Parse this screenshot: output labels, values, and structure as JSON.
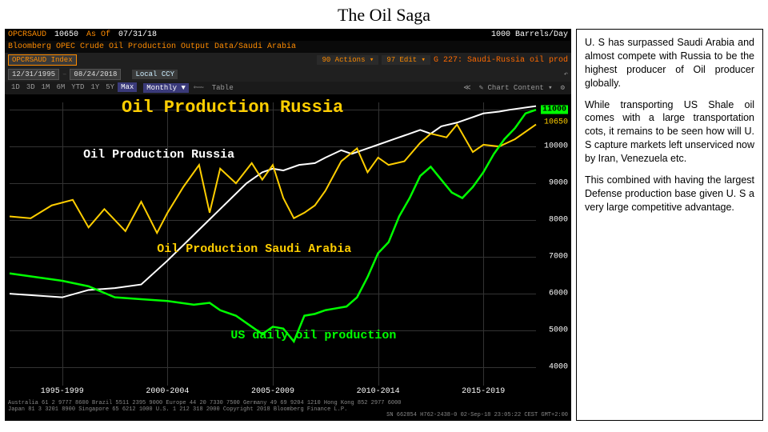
{
  "page": {
    "title": "The Oil Saga"
  },
  "terminal": {
    "header": {
      "ticker": "OPCRSAUD",
      "value": "10650",
      "asof_label": "As Of",
      "asof_date": "07/31/18",
      "unit": "1000 Barrels/Day",
      "subtitle": "Bloomberg OPEC Crude Oil Production Output Data/Saudi Arabia"
    },
    "toolbar": {
      "index_label": "OPCRSAUD Index",
      "actions_count": "90",
      "actions_label": "Actions",
      "edit_count": "97",
      "edit_label": "Edit",
      "right_label": "G 227: Saudi-Russia oil prod",
      "date_from": "12/31/1995",
      "date_to": "08/24/2018",
      "local_ccy": "Local CCY"
    },
    "timeframe": {
      "buttons": [
        "1D",
        "3D",
        "1M",
        "6M",
        "YTD",
        "1Y",
        "5Y",
        "Max"
      ],
      "active": "Max",
      "mode": "Monthly ▼",
      "table_label": "Table",
      "content_label": "Chart Content"
    }
  },
  "chart": {
    "type": "line",
    "title": "Oil Production Russia",
    "title_color": "#ffce00",
    "background_color": "#000000",
    "grid_color": "#333333",
    "ylim": [
      3500,
      11200
    ],
    "ytick_step": 1000,
    "y_highlight": {
      "value": 11000,
      "color": "#00ff00"
    },
    "y_secondary": 10650,
    "xlabels": [
      "1995-1999",
      "2000-2004",
      "2005-2009",
      "2010-2014",
      "2015-2019"
    ],
    "series": [
      {
        "name": "russia",
        "label": "Oil Production Russia",
        "color": "#ffffff",
        "width": 2,
        "label_pos": {
          "x_pct": 14,
          "y_val": 9950
        },
        "points": [
          [
            0,
            6000
          ],
          [
            5,
            5950
          ],
          [
            10,
            5900
          ],
          [
            15,
            6100
          ],
          [
            20,
            6150
          ],
          [
            25,
            6250
          ],
          [
            30,
            6900
          ],
          [
            35,
            7600
          ],
          [
            40,
            8300
          ],
          [
            45,
            9000
          ],
          [
            48,
            9300
          ],
          [
            50,
            9400
          ],
          [
            52,
            9350
          ],
          [
            55,
            9500
          ],
          [
            58,
            9550
          ],
          [
            60,
            9700
          ],
          [
            63,
            9900
          ],
          [
            65,
            9800
          ],
          [
            68,
            9950
          ],
          [
            70,
            10050
          ],
          [
            73,
            10200
          ],
          [
            75,
            10300
          ],
          [
            78,
            10450
          ],
          [
            80,
            10350
          ],
          [
            82,
            10550
          ],
          [
            85,
            10650
          ],
          [
            88,
            10800
          ],
          [
            90,
            10900
          ],
          [
            93,
            10950
          ],
          [
            95,
            11000
          ],
          [
            100,
            11100
          ]
        ]
      },
      {
        "name": "saudi",
        "label": "Oil Production Saudi Arabia",
        "color": "#ffce00",
        "width": 2,
        "label_pos": {
          "x_pct": 28,
          "y_val": 7400
        },
        "points": [
          [
            0,
            8100
          ],
          [
            4,
            8050
          ],
          [
            8,
            8400
          ],
          [
            12,
            8550
          ],
          [
            15,
            7800
          ],
          [
            18,
            8300
          ],
          [
            22,
            7700
          ],
          [
            25,
            8500
          ],
          [
            28,
            7650
          ],
          [
            30,
            8200
          ],
          [
            33,
            8900
          ],
          [
            36,
            9500
          ],
          [
            38,
            8200
          ],
          [
            40,
            9400
          ],
          [
            43,
            9000
          ],
          [
            46,
            9550
          ],
          [
            48,
            9100
          ],
          [
            50,
            9500
          ],
          [
            52,
            8600
          ],
          [
            54,
            8050
          ],
          [
            56,
            8200
          ],
          [
            58,
            8400
          ],
          [
            60,
            8800
          ],
          [
            63,
            9600
          ],
          [
            66,
            9950
          ],
          [
            68,
            9300
          ],
          [
            70,
            9700
          ],
          [
            72,
            9500
          ],
          [
            75,
            9600
          ],
          [
            78,
            10100
          ],
          [
            80,
            10350
          ],
          [
            83,
            10250
          ],
          [
            85,
            10600
          ],
          [
            88,
            9850
          ],
          [
            90,
            10050
          ],
          [
            93,
            10000
          ],
          [
            96,
            10200
          ],
          [
            100,
            10600
          ]
        ]
      },
      {
        "name": "us",
        "label": "US daily oil production",
        "color": "#00ff00",
        "width": 2.5,
        "label_pos": {
          "x_pct": 42,
          "y_val": 5050
        },
        "points": [
          [
            0,
            6550
          ],
          [
            5,
            6450
          ],
          [
            10,
            6350
          ],
          [
            15,
            6200
          ],
          [
            20,
            5900
          ],
          [
            25,
            5850
          ],
          [
            30,
            5800
          ],
          [
            35,
            5700
          ],
          [
            38,
            5750
          ],
          [
            40,
            5550
          ],
          [
            43,
            5400
          ],
          [
            46,
            5100
          ],
          [
            48,
            4900
          ],
          [
            50,
            5100
          ],
          [
            52,
            5050
          ],
          [
            54,
            4700
          ],
          [
            56,
            5400
          ],
          [
            58,
            5450
          ],
          [
            60,
            5550
          ],
          [
            62,
            5600
          ],
          [
            64,
            5650
          ],
          [
            66,
            5900
          ],
          [
            68,
            6450
          ],
          [
            70,
            7100
          ],
          [
            72,
            7400
          ],
          [
            74,
            8100
          ],
          [
            76,
            8600
          ],
          [
            78,
            9200
          ],
          [
            80,
            9450
          ],
          [
            82,
            9100
          ],
          [
            84,
            8750
          ],
          [
            86,
            8600
          ],
          [
            88,
            8900
          ],
          [
            90,
            9300
          ],
          [
            92,
            9800
          ],
          [
            94,
            10200
          ],
          [
            96,
            10500
          ],
          [
            98,
            10900
          ],
          [
            100,
            11000
          ]
        ]
      }
    ]
  },
  "footer": {
    "line1": "Australia 61 2 9777 8600 Brazil 5511 2395 9000 Europe 44 20 7330 7500 Germany 49 69 9204 1210 Hong Kong 852 2977 6000",
    "line2": "Japan 81 3 3201 8900   Singapore 65 6212 1000   U.S. 1 212 318 2000   Copyright 2018 Bloomberg Finance L.P.",
    "line3": "SN 662854 H762-2438-0 02-Sep-18 23:05:22 CEST GMT+2:00"
  },
  "commentary": {
    "p1": "U. S has surpassed Saudi Arabia and almost compete with Russia to be the highest producer of Oil producer globally.",
    "p2": "While transporting US Shale oil comes with a large transportation cots, it remains to be seen how will U. S capture markets left unserviced now by Iran, Venezuela etc.",
    "p3": "This combined with having the largest Defense production base given U. S a very large competitive advantage."
  }
}
